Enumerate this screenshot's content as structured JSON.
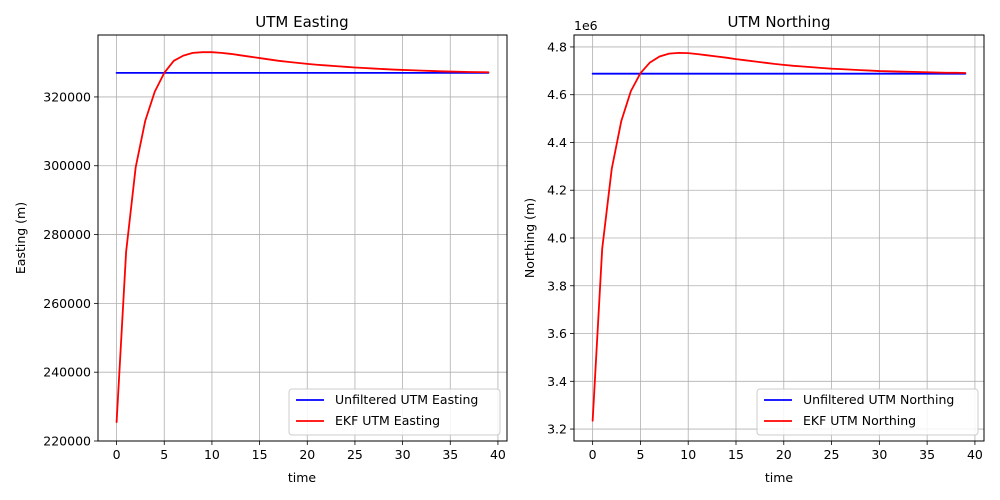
{
  "chart_data": [
    {
      "type": "line",
      "title": "UTM Easting",
      "xlabel": "time",
      "ylabel": "Easting (m)",
      "xlim": [
        -1.95,
        40.95
      ],
      "ylim": [
        220000,
        338000
      ],
      "xticks": [
        0,
        5,
        10,
        15,
        20,
        25,
        30,
        35,
        40
      ],
      "yticks": [
        220000,
        240000,
        260000,
        280000,
        300000,
        320000
      ],
      "ytick_labels": [
        "220000",
        "240000",
        "260000",
        "280000",
        "300000",
        "320000"
      ],
      "offset_text": "",
      "grid": true,
      "legend_position": "lower-right",
      "series": [
        {
          "name": "Unfiltered UTM Easting",
          "color": "#0000ff",
          "x": [
            0,
            39
          ],
          "y": [
            327000,
            327000
          ]
        },
        {
          "name": "EKF UTM Easting",
          "color": "#ff0000",
          "x": [
            0,
            1,
            2,
            3,
            4,
            5,
            6,
            7,
            8,
            9,
            10,
            11,
            12,
            13,
            14,
            15,
            16,
            17,
            18,
            19,
            20,
            21,
            22,
            23,
            24,
            25,
            26,
            27,
            28,
            29,
            30,
            31,
            32,
            33,
            34,
            35,
            36,
            37,
            38,
            39
          ],
          "y": [
            225500,
            275000,
            299500,
            313000,
            321500,
            327000,
            330500,
            332000,
            332800,
            333000,
            333000,
            332800,
            332500,
            332100,
            331700,
            331300,
            330900,
            330500,
            330200,
            329900,
            329600,
            329350,
            329150,
            328950,
            328750,
            328550,
            328400,
            328250,
            328100,
            327950,
            327850,
            327750,
            327650,
            327550,
            327450,
            327380,
            327310,
            327250,
            327200,
            327150
          ]
        }
      ]
    },
    {
      "type": "line",
      "title": "UTM Northing",
      "xlabel": "time",
      "ylabel": "Northing (m)",
      "xlim": [
        -1.95,
        40.95
      ],
      "ylim": [
        3.15,
        4.85
      ],
      "xticks": [
        0,
        5,
        10,
        15,
        20,
        25,
        30,
        35,
        40
      ],
      "yticks": [
        3.2,
        3.4,
        3.6,
        3.8,
        4.0,
        4.2,
        4.4,
        4.6,
        4.8
      ],
      "ytick_labels": [
        "3.2",
        "3.4",
        "3.6",
        "3.8",
        "4.0",
        "4.2",
        "4.4",
        "4.6",
        "4.8"
      ],
      "offset_text": "1e6",
      "grid": true,
      "legend_position": "lower-right",
      "series": [
        {
          "name": "Unfiltered UTM Northing",
          "color": "#0000ff",
          "x": [
            0,
            39
          ],
          "y": [
            4.688,
            4.688
          ]
        },
        {
          "name": "EKF UTM Northing",
          "color": "#ff0000",
          "x": [
            0,
            1,
            2,
            3,
            4,
            5,
            6,
            7,
            8,
            9,
            10,
            11,
            12,
            13,
            14,
            15,
            16,
            17,
            18,
            19,
            20,
            21,
            22,
            23,
            24,
            25,
            26,
            27,
            28,
            29,
            30,
            31,
            32,
            33,
            34,
            35,
            36,
            37,
            38,
            39
          ],
          "y": [
            3.235,
            3.955,
            4.29,
            4.49,
            4.615,
            4.69,
            4.735,
            4.76,
            4.772,
            4.775,
            4.774,
            4.77,
            4.765,
            4.76,
            4.755,
            4.749,
            4.744,
            4.739,
            4.734,
            4.729,
            4.725,
            4.721,
            4.718,
            4.715,
            4.712,
            4.709,
            4.707,
            4.705,
            4.703,
            4.701,
            4.699,
            4.698,
            4.697,
            4.696,
            4.695,
            4.694,
            4.693,
            4.692,
            4.692,
            4.691
          ]
        }
      ]
    }
  ]
}
